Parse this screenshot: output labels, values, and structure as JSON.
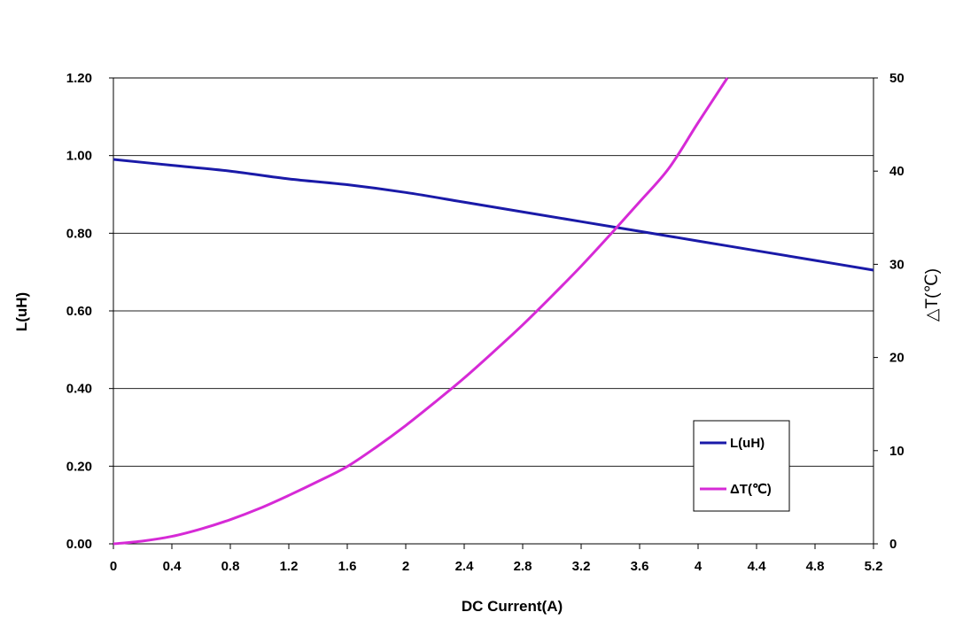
{
  "chart_data": {
    "type": "line",
    "title": "",
    "xlabel": "DC Current(A)",
    "ylabel": "L(uH)",
    "y2label": "△T(℃)",
    "xlim": [
      0,
      5.2
    ],
    "ylim": [
      0,
      1.2
    ],
    "y2lim": [
      0,
      50
    ],
    "x_ticks": [
      "0",
      "0.4",
      "0.8",
      "1.2",
      "1.6",
      "2",
      "2.4",
      "2.8",
      "3.2",
      "3.6",
      "4",
      "4.4",
      "4.8",
      "5.2"
    ],
    "y_ticks": [
      "0.00",
      "0.20",
      "0.40",
      "0.60",
      "0.80",
      "1.00",
      "1.20"
    ],
    "y2_ticks": [
      "0",
      "10",
      "20",
      "30",
      "40",
      "50"
    ],
    "grid": "horizontal",
    "legend_position": "bottom-right",
    "series": [
      {
        "name": "L(uH)",
        "axis": "left",
        "color": "#1a1aa8",
        "x": [
          0,
          0.4,
          0.8,
          1.2,
          1.6,
          2.0,
          2.4,
          2.8,
          3.2,
          3.6,
          4.0,
          4.4,
          4.8,
          5.2
        ],
        "y": [
          0.99,
          0.975,
          0.96,
          0.94,
          0.925,
          0.905,
          0.88,
          0.855,
          0.83,
          0.805,
          0.78,
          0.755,
          0.73,
          0.705
        ]
      },
      {
        "name": "ΔT(℃)",
        "axis": "right",
        "color": "#d62ad6",
        "x": [
          0,
          0.2,
          0.4,
          0.6,
          0.8,
          1.0,
          1.2,
          1.4,
          1.6,
          1.8,
          2.0,
          2.2,
          2.4,
          2.6,
          2.8,
          3.0,
          3.2,
          3.4,
          3.6,
          3.8,
          4.0,
          4.2
        ],
        "y": [
          0,
          0.3,
          0.8,
          1.6,
          2.6,
          3.8,
          5.2,
          6.7,
          8.3,
          10.4,
          12.7,
          15.2,
          17.8,
          20.6,
          23.5,
          26.6,
          29.8,
          33.2,
          36.7,
          40.3,
          45.2,
          50
        ]
      }
    ]
  }
}
